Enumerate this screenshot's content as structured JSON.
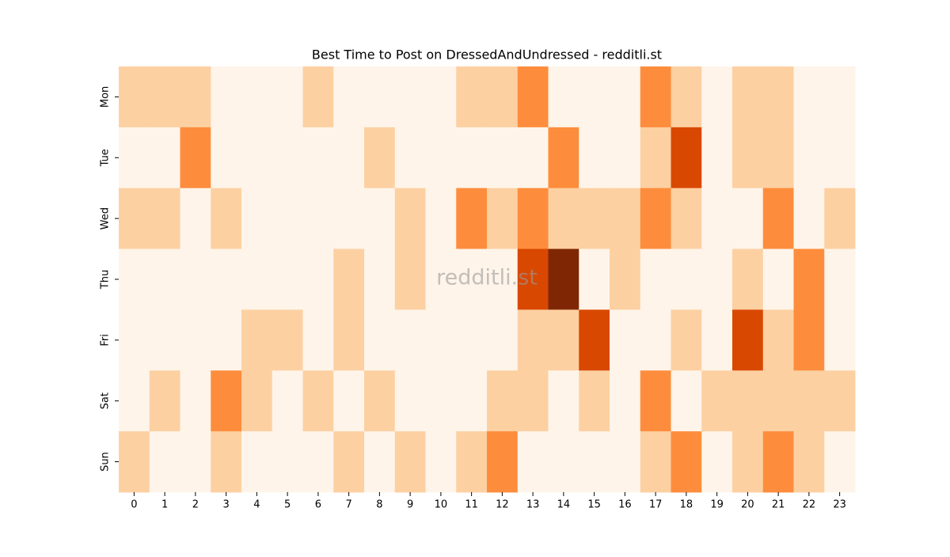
{
  "chart_data": {
    "type": "heatmap",
    "title": "Best Time to Post on DressedAndUndressed - redditli.st",
    "watermark": "redditli.st",
    "x": [
      0,
      1,
      2,
      3,
      4,
      5,
      6,
      7,
      8,
      9,
      10,
      11,
      12,
      13,
      14,
      15,
      16,
      17,
      18,
      19,
      20,
      21,
      22,
      23
    ],
    "y": [
      "Mon",
      "Tue",
      "Wed",
      "Thu",
      "Fri",
      "Sat",
      "Sun"
    ],
    "values": [
      [
        1,
        1,
        1,
        0,
        0,
        0,
        1,
        0,
        0,
        0,
        0,
        1,
        1,
        2,
        0,
        0,
        0,
        2,
        1,
        0,
        1,
        1,
        0,
        0
      ],
      [
        0,
        0,
        2,
        0,
        0,
        0,
        0,
        0,
        1,
        0,
        0,
        0,
        0,
        0,
        2,
        0,
        0,
        1,
        3,
        0,
        1,
        1,
        0,
        0
      ],
      [
        1,
        1,
        0,
        1,
        0,
        0,
        0,
        0,
        0,
        1,
        0,
        2,
        1,
        2,
        1,
        1,
        1,
        2,
        1,
        0,
        0,
        2,
        0,
        1
      ],
      [
        0,
        0,
        0,
        0,
        0,
        0,
        0,
        1,
        0,
        1,
        0,
        0,
        0,
        3,
        4,
        0,
        1,
        0,
        0,
        0,
        1,
        0,
        2,
        0
      ],
      [
        0,
        0,
        0,
        0,
        1,
        1,
        0,
        1,
        0,
        0,
        0,
        0,
        0,
        1,
        1,
        3,
        0,
        0,
        1,
        0,
        3,
        1,
        2,
        0
      ],
      [
        0,
        1,
        0,
        2,
        1,
        0,
        1,
        0,
        1,
        0,
        0,
        0,
        1,
        1,
        0,
        1,
        0,
        2,
        0,
        1,
        1,
        1,
        1,
        1
      ],
      [
        1,
        0,
        0,
        1,
        0,
        0,
        0,
        1,
        0,
        1,
        0,
        1,
        2,
        0,
        0,
        0,
        0,
        1,
        2,
        0,
        1,
        2,
        1,
        0
      ]
    ],
    "zlim": [
      0,
      4
    ],
    "colors": [
      "#fef4e9",
      "#fdd0a2",
      "#fd8d3c",
      "#d94801",
      "#7f2704"
    ]
  }
}
